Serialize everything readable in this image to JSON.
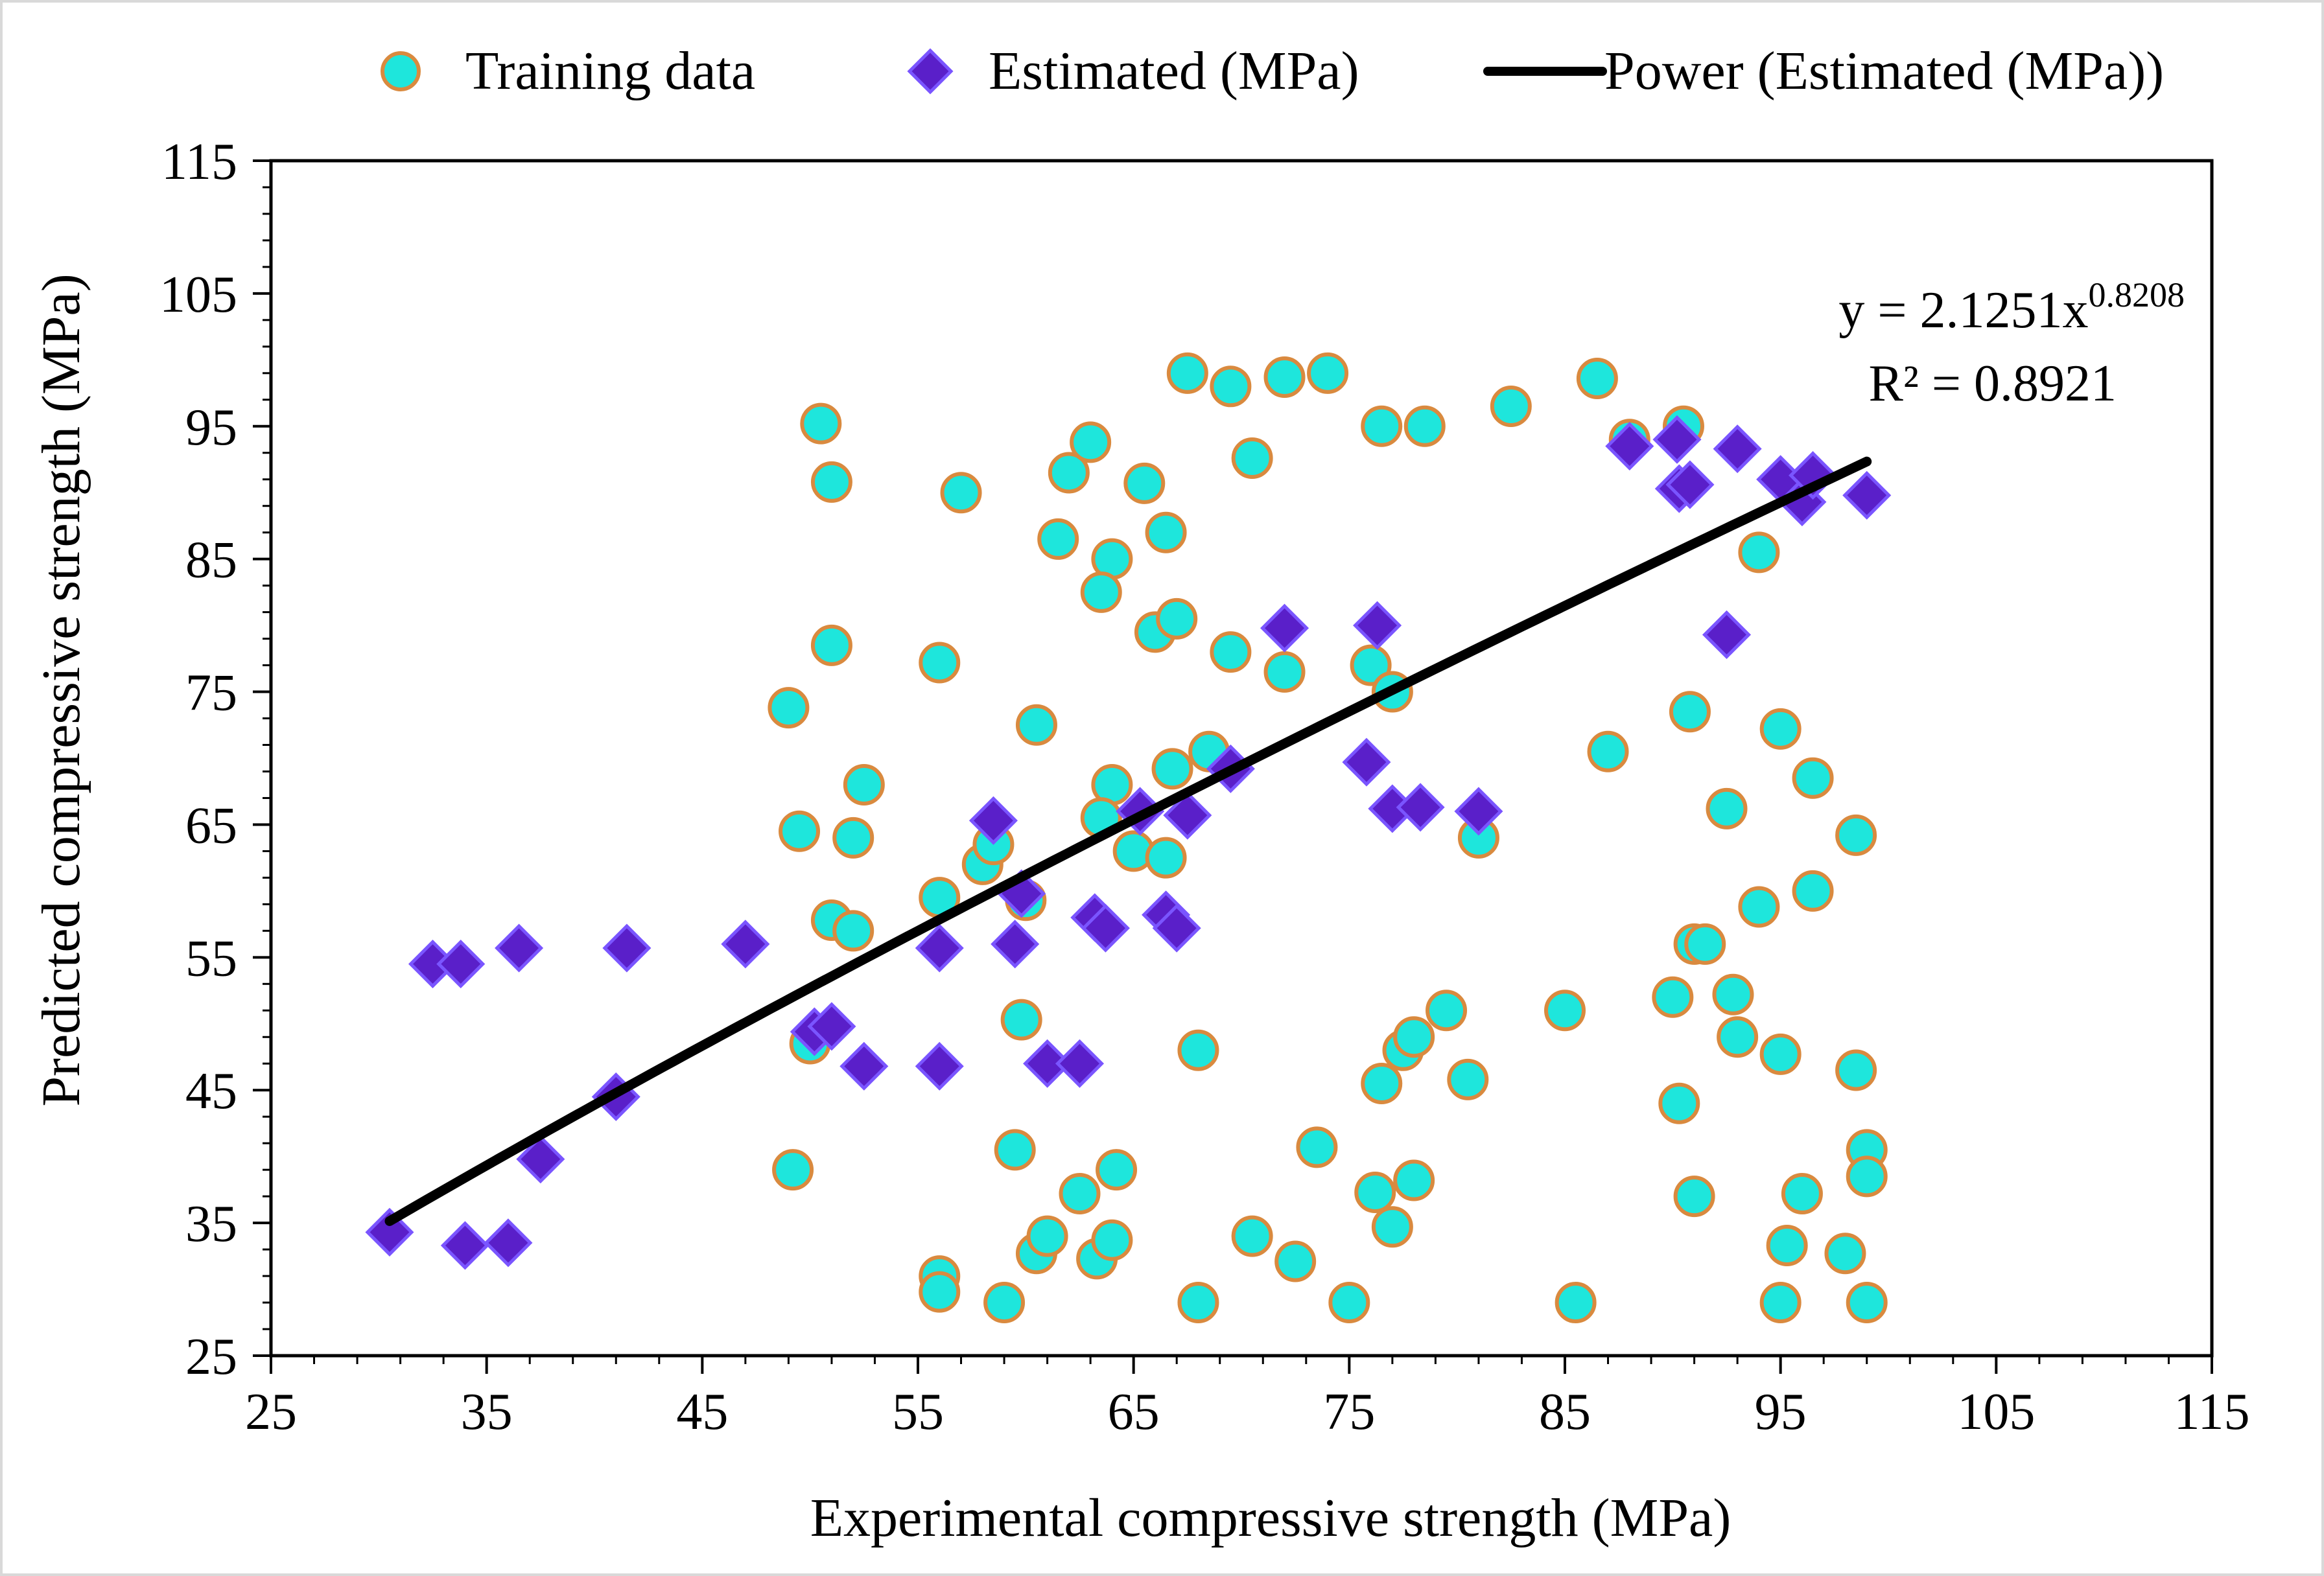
{
  "chart_data": {
    "type": "scatter",
    "title": "",
    "xlabel": "Experimental compressive strength (MPa)",
    "ylabel": "Predicted compressive strength (MPa)",
    "xlim": [
      25,
      115
    ],
    "ylim": [
      25,
      115
    ],
    "x_ticks": [
      "25",
      "35",
      "45",
      "55",
      "65",
      "75",
      "85",
      "95",
      "105",
      "115"
    ],
    "y_ticks": [
      "25",
      "35",
      "45",
      "55",
      "65",
      "75",
      "85",
      "95",
      "105",
      "115"
    ],
    "legend": {
      "placement": "top",
      "entries": [
        "Training data",
        "Estimated (MPa)",
        "Power (Estimated (MPa))"
      ]
    },
    "annotation": {
      "equation_prefix": "y = 2.1251x",
      "equation_exponent": "0.8208",
      "r_squared": "R² = 0.8921"
    },
    "colors": {
      "training_fill": "#1ee6dc",
      "training_stroke": "#d98a3f",
      "estimated_fill": "#5a1fc9",
      "estimated_stroke": "#7a55ff",
      "trend": "#000000"
    },
    "series": [
      {
        "name": "Training data",
        "marker": "circle",
        "points": [
          [
            50.5,
            95.2
          ],
          [
            51.0,
            90.8
          ],
          [
            57.0,
            90.0
          ],
          [
            62.0,
            91.5
          ],
          [
            63.0,
            93.8
          ],
          [
            65.5,
            90.7
          ],
          [
            67.5,
            99.0
          ],
          [
            69.5,
            98.0
          ],
          [
            72.0,
            98.7
          ],
          [
            74.0,
            99.0
          ],
          [
            70.5,
            92.6
          ],
          [
            76.5,
            95.0
          ],
          [
            78.5,
            95.0
          ],
          [
            82.5,
            96.5
          ],
          [
            86.5,
            98.6
          ],
          [
            88.0,
            94.0
          ],
          [
            90.5,
            95.0
          ],
          [
            61.5,
            86.5
          ],
          [
            64.0,
            85.0
          ],
          [
            66.5,
            87.0
          ],
          [
            63.5,
            82.5
          ],
          [
            66.0,
            79.5
          ],
          [
            67.0,
            80.5
          ],
          [
            69.5,
            78.0
          ],
          [
            72.0,
            76.5
          ],
          [
            76.0,
            77.0
          ],
          [
            77.0,
            75.0
          ],
          [
            94.0,
            85.5
          ],
          [
            49.0,
            73.8
          ],
          [
            51.0,
            78.5
          ],
          [
            56.0,
            77.2
          ],
          [
            60.5,
            72.5
          ],
          [
            87.0,
            70.5
          ],
          [
            90.8,
            73.5
          ],
          [
            95.0,
            72.2
          ],
          [
            96.5,
            68.5
          ],
          [
            49.5,
            64.5
          ],
          [
            52.0,
            64.0
          ],
          [
            52.5,
            68.0
          ],
          [
            58.0,
            62.0
          ],
          [
            58.5,
            63.5
          ],
          [
            64.0,
            68.0
          ],
          [
            63.5,
            65.5
          ],
          [
            65.0,
            63.0
          ],
          [
            66.5,
            62.5
          ],
          [
            66.8,
            69.2
          ],
          [
            68.5,
            70.5
          ],
          [
            81.0,
            64.0
          ],
          [
            92.5,
            66.2
          ],
          [
            98.5,
            64.2
          ],
          [
            51.0,
            57.8
          ],
          [
            52.0,
            57.0
          ],
          [
            56.0,
            59.5
          ],
          [
            60.0,
            59.3
          ],
          [
            94.0,
            58.8
          ],
          [
            96.5,
            60.0
          ],
          [
            91.0,
            56.0
          ],
          [
            91.5,
            56.0
          ],
          [
            50.0,
            48.5
          ],
          [
            59.8,
            50.3
          ],
          [
            68.0,
            48.0
          ],
          [
            77.5,
            48.0
          ],
          [
            78.0,
            49.0
          ],
          [
            79.5,
            51.0
          ],
          [
            85.0,
            51.0
          ],
          [
            90.0,
            52.0
          ],
          [
            92.8,
            52.2
          ],
          [
            93.0,
            49.0
          ],
          [
            95.0,
            47.7
          ],
          [
            76.5,
            45.5
          ],
          [
            80.5,
            45.8
          ],
          [
            90.3,
            44.0
          ],
          [
            98.5,
            46.5
          ],
          [
            49.2,
            39.0
          ],
          [
            59.5,
            40.5
          ],
          [
            62.5,
            37.2
          ],
          [
            64.2,
            39.0
          ],
          [
            73.5,
            40.7
          ],
          [
            76.2,
            37.3
          ],
          [
            78.0,
            38.2
          ],
          [
            91.0,
            37.0
          ],
          [
            96.0,
            37.2
          ],
          [
            99.0,
            40.5
          ],
          [
            99.0,
            38.5
          ],
          [
            56.0,
            31.0
          ],
          [
            60.5,
            32.7
          ],
          [
            61.0,
            34.0
          ],
          [
            63.3,
            32.3
          ],
          [
            64.0,
            33.7
          ],
          [
            70.5,
            34.0
          ],
          [
            72.5,
            32.1
          ],
          [
            77.0,
            34.7
          ],
          [
            95.3,
            33.3
          ],
          [
            98.0,
            32.7
          ],
          [
            56.0,
            29.8
          ],
          [
            59.0,
            29.0
          ],
          [
            68.0,
            29.0
          ],
          [
            75.0,
            29.0
          ],
          [
            85.5,
            29.0
          ],
          [
            95.0,
            29.0
          ],
          [
            99.0,
            29.0
          ]
        ]
      },
      {
        "name": "Estimated (MPa)",
        "marker": "diamond",
        "points": [
          [
            30.5,
            34.3
          ],
          [
            34.0,
            33.3
          ],
          [
            36.0,
            33.5
          ],
          [
            37.5,
            39.8
          ],
          [
            41.0,
            44.5
          ],
          [
            32.5,
            54.5
          ],
          [
            33.8,
            54.5
          ],
          [
            36.5,
            55.7
          ],
          [
            41.5,
            55.7
          ],
          [
            47.0,
            56.0
          ],
          [
            50.2,
            49.4
          ],
          [
            51.0,
            49.8
          ],
          [
            52.5,
            46.8
          ],
          [
            56.0,
            46.8
          ],
          [
            56.0,
            55.7
          ],
          [
            58.5,
            65.3
          ],
          [
            59.8,
            59.8
          ],
          [
            59.5,
            56.0
          ],
          [
            61.0,
            47.0
          ],
          [
            62.5,
            47.0
          ],
          [
            63.2,
            58.0
          ],
          [
            63.7,
            57.2
          ],
          [
            65.3,
            66.0
          ],
          [
            66.5,
            58.2
          ],
          [
            67.0,
            57.2
          ],
          [
            67.5,
            65.7
          ],
          [
            69.5,
            69.2
          ],
          [
            72.0,
            79.8
          ],
          [
            75.8,
            69.7
          ],
          [
            76.3,
            80.0
          ],
          [
            77.0,
            66.2
          ],
          [
            78.3,
            66.3
          ],
          [
            81.0,
            66.0
          ],
          [
            88.0,
            93.5
          ],
          [
            90.2,
            94.0
          ],
          [
            90.3,
            90.3
          ],
          [
            90.8,
            90.6
          ],
          [
            92.5,
            79.3
          ],
          [
            93.0,
            93.3
          ],
          [
            95.0,
            91.0
          ],
          [
            96.0,
            89.3
          ],
          [
            96.5,
            91.3
          ],
          [
            99.0,
            89.8
          ]
        ]
      },
      {
        "name": "Power (Estimated (MPa))",
        "marker": "line",
        "function": {
          "a": 2.1251,
          "b": 0.8208
        },
        "x_range": [
          30.5,
          99.0
        ]
      }
    ]
  }
}
